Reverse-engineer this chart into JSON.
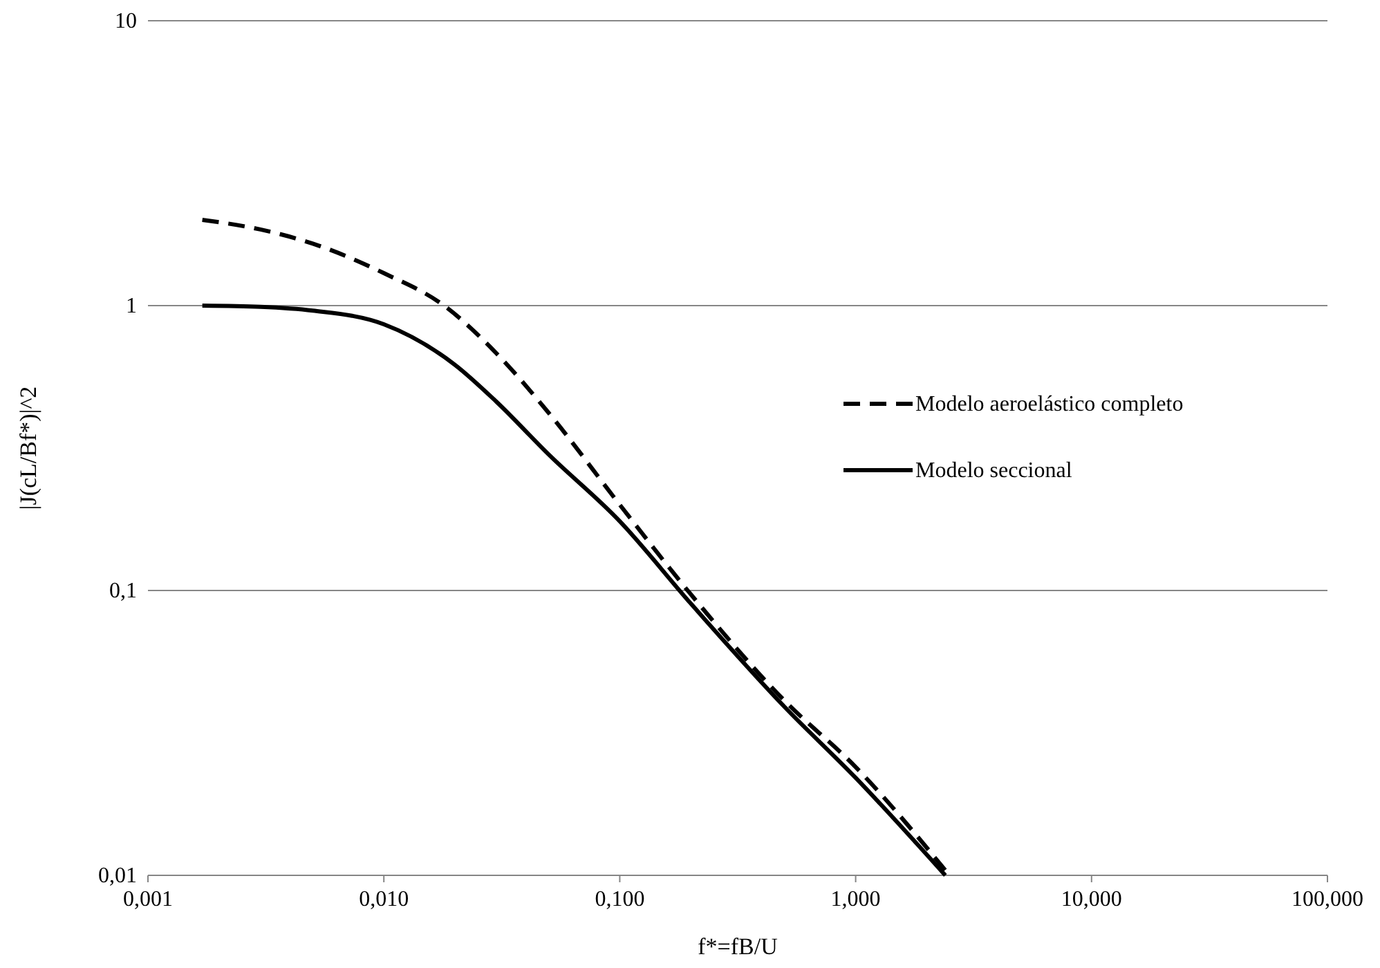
{
  "chart_data": {
    "type": "line",
    "xlabel": "f*=fB/U",
    "ylabel": "|J(cL/Bf*)|^2",
    "log": "xy",
    "grid": "y",
    "legend": "right",
    "xlim": [
      0.001,
      100
    ],
    "ylim": [
      0.01,
      10
    ],
    "xticks": [
      {
        "value": 0.001,
        "label": "0,001"
      },
      {
        "value": 0.01,
        "label": "0,010"
      },
      {
        "value": 0.1,
        "label": "0,100"
      },
      {
        "value": 1,
        "label": "1,000"
      },
      {
        "value": 10,
        "label": "10,000"
      },
      {
        "value": 100,
        "label": "100,000"
      }
    ],
    "yticks": [
      {
        "value": 0.01,
        "label": "0,01"
      },
      {
        "value": 0.1,
        "label": "0,1"
      },
      {
        "value": 1,
        "label": "1"
      },
      {
        "value": 10,
        "label": "10"
      }
    ],
    "series": [
      {
        "name": "Modelo aeroelástico completo",
        "color": "#000000",
        "line_style": "dashed",
        "x": [
          0.0017,
          0.003,
          0.005,
          0.01,
          0.018,
          0.03,
          0.05,
          0.1,
          0.2,
          0.5,
          1,
          2.5
        ],
        "values": [
          2.0,
          1.85,
          1.65,
          1.3,
          1.0,
          0.68,
          0.42,
          0.2,
          0.097,
          0.041,
          0.024,
          0.01
        ]
      },
      {
        "name": "Modelo seccional",
        "color": "#000000",
        "line_style": "solid",
        "x": [
          0.0017,
          0.003,
          0.005,
          0.01,
          0.02,
          0.03,
          0.05,
          0.1,
          0.2,
          0.5,
          1,
          2.4
        ],
        "values": [
          1.0,
          0.99,
          0.96,
          0.86,
          0.62,
          0.46,
          0.3,
          0.175,
          0.09,
          0.039,
          0.022,
          0.01
        ]
      }
    ]
  }
}
